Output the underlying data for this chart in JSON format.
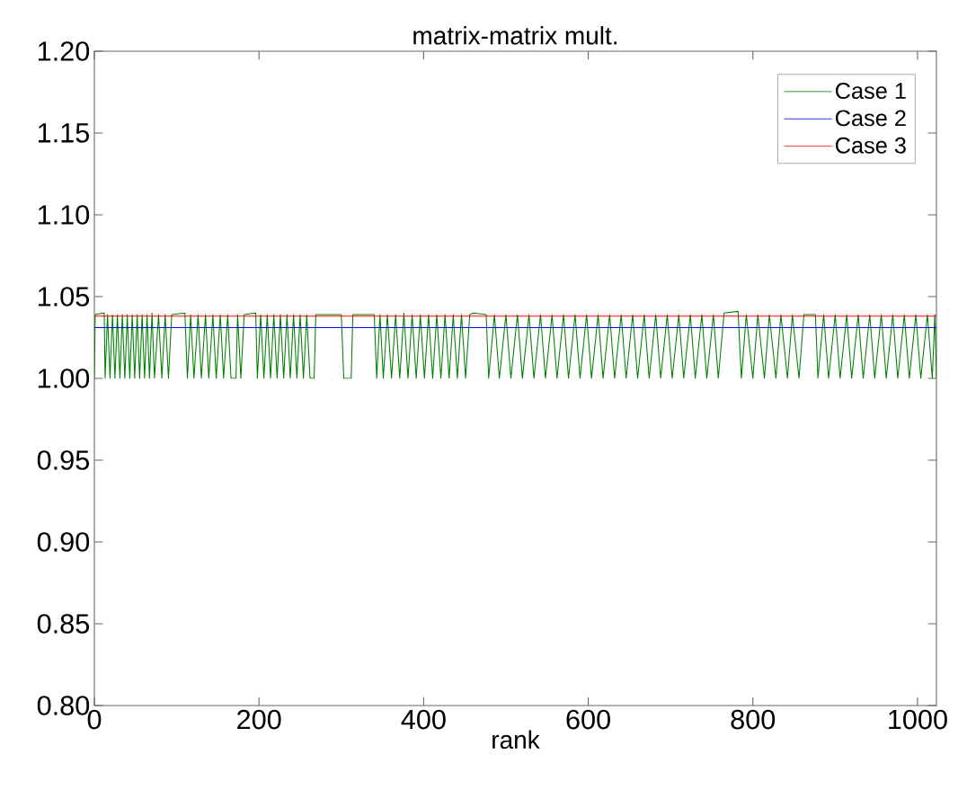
{
  "chart_data": {
    "type": "line",
    "title": "matrix-matrix mult.",
    "xlabel": "rank",
    "xlim": [
      0,
      1023
    ],
    "ylim": [
      0.8,
      1.2
    ],
    "xticks": [
      0,
      200,
      400,
      600,
      800,
      1000
    ],
    "yticks": [
      {
        "value": 0.8,
        "label": "0.80"
      },
      {
        "value": 0.85,
        "label": "0.85"
      },
      {
        "value": 0.9,
        "label": "0.90"
      },
      {
        "value": 0.95,
        "label": "0.95"
      },
      {
        "value": 1.0,
        "label": "1.00"
      },
      {
        "value": 1.05,
        "label": "1.05"
      },
      {
        "value": 1.1,
        "label": "1.10"
      },
      {
        "value": 1.15,
        "label": "1.15"
      },
      {
        "value": 1.2,
        "label": "1.20"
      }
    ],
    "legend": "top right",
    "grid": false,
    "marker": "none",
    "line_style": "solid",
    "series": [
      {
        "name": "Case 1",
        "color": "#008000",
        "x": [
          0,
          1,
          12,
          13,
          16,
          19,
          22,
          25,
          28,
          31,
          34,
          37,
          40,
          43,
          46,
          49,
          52,
          55,
          58,
          61,
          64,
          67,
          70,
          73,
          78,
          82,
          86,
          90,
          94,
          110,
          113,
          117,
          121,
          126,
          130,
          135,
          139,
          144,
          148,
          153,
          157,
          162,
          166,
          172,
          174,
          178,
          182,
          196,
          198,
          202,
          206,
          210,
          214,
          218,
          222,
          226,
          230,
          234,
          238,
          242,
          246,
          250,
          254,
          258,
          262,
          267,
          269,
          300,
          303,
          312,
          314,
          340,
          343,
          347,
          351,
          356,
          361,
          366,
          371,
          376,
          381,
          386,
          391,
          396,
          401,
          406,
          411,
          416,
          421,
          426,
          431,
          436,
          441,
          446,
          451,
          456,
          461,
          476,
          479,
          486,
          492,
          500,
          506,
          514,
          520,
          528,
          534,
          542,
          548,
          556,
          562,
          570,
          576,
          584,
          590,
          598,
          604,
          612,
          618,
          626,
          632,
          640,
          646,
          654,
          660,
          668,
          674,
          682,
          688,
          696,
          702,
          710,
          716,
          724,
          730,
          738,
          744,
          752,
          758,
          765,
          782,
          786,
          792,
          800,
          806,
          814,
          820,
          828,
          834,
          842,
          848,
          856,
          862,
          876,
          879,
          886,
          892,
          900,
          906,
          914,
          920,
          928,
          934,
          942,
          948,
          956,
          962,
          970,
          976,
          984,
          990,
          998,
          1004,
          1012,
          1018,
          1021,
          1023
        ],
        "values": [
          1.0,
          1.039,
          1.04,
          1.0,
          1.039,
          1.0,
          1.039,
          1.0,
          1.039,
          1.0,
          1.039,
          1.0,
          1.039,
          1.0,
          1.039,
          1.0,
          1.039,
          1.0,
          1.039,
          1.0,
          1.039,
          1.0,
          1.04,
          1.0,
          1.039,
          1.0,
          1.039,
          1.0,
          1.039,
          1.04,
          1.0,
          1.039,
          1.0,
          1.039,
          1.0,
          1.039,
          1.0,
          1.039,
          1.0,
          1.039,
          1.0,
          1.039,
          1.0,
          1.0,
          1.039,
          1.0,
          1.039,
          1.04,
          1.0,
          1.039,
          1.0,
          1.039,
          1.0,
          1.039,
          1.0,
          1.039,
          1.0,
          1.039,
          1.0,
          1.039,
          1.0,
          1.039,
          1.0,
          1.039,
          1.0,
          1.0,
          1.039,
          1.039,
          1.0,
          1.0,
          1.039,
          1.039,
          1.0,
          1.039,
          1.0,
          1.039,
          1.0,
          1.039,
          1.0,
          1.04,
          1.0,
          1.039,
          1.0,
          1.039,
          1.0,
          1.039,
          1.0,
          1.039,
          1.0,
          1.039,
          1.0,
          1.039,
          1.0,
          1.039,
          1.0,
          1.039,
          1.04,
          1.039,
          1.0,
          1.039,
          1.0,
          1.039,
          1.0,
          1.039,
          1.0,
          1.039,
          1.0,
          1.039,
          1.0,
          1.039,
          1.0,
          1.039,
          1.0,
          1.039,
          1.0,
          1.039,
          1.0,
          1.039,
          1.0,
          1.039,
          1.0,
          1.039,
          1.0,
          1.039,
          1.0,
          1.039,
          1.0,
          1.039,
          1.0,
          1.039,
          1.0,
          1.039,
          1.0,
          1.039,
          1.0,
          1.039,
          1.0,
          1.039,
          1.0,
          1.04,
          1.041,
          1.0,
          1.039,
          1.0,
          1.039,
          1.0,
          1.039,
          1.0,
          1.039,
          1.0,
          1.039,
          1.0,
          1.039,
          1.039,
          1.0,
          1.039,
          1.0,
          1.039,
          1.0,
          1.039,
          1.0,
          1.039,
          1.0,
          1.039,
          1.0,
          1.039,
          1.0,
          1.039,
          1.0,
          1.039,
          1.0,
          1.039,
          1.0,
          1.039,
          1.0,
          1.039,
          1.0
        ]
      },
      {
        "name": "Case 2",
        "color": "#0000ff",
        "x": [
          0,
          1023
        ],
        "values": [
          1.031,
          1.031
        ]
      },
      {
        "name": "Case 3",
        "color": "#ff0000",
        "x": [
          0,
          1023
        ],
        "values": [
          1.038,
          1.038
        ]
      }
    ]
  }
}
